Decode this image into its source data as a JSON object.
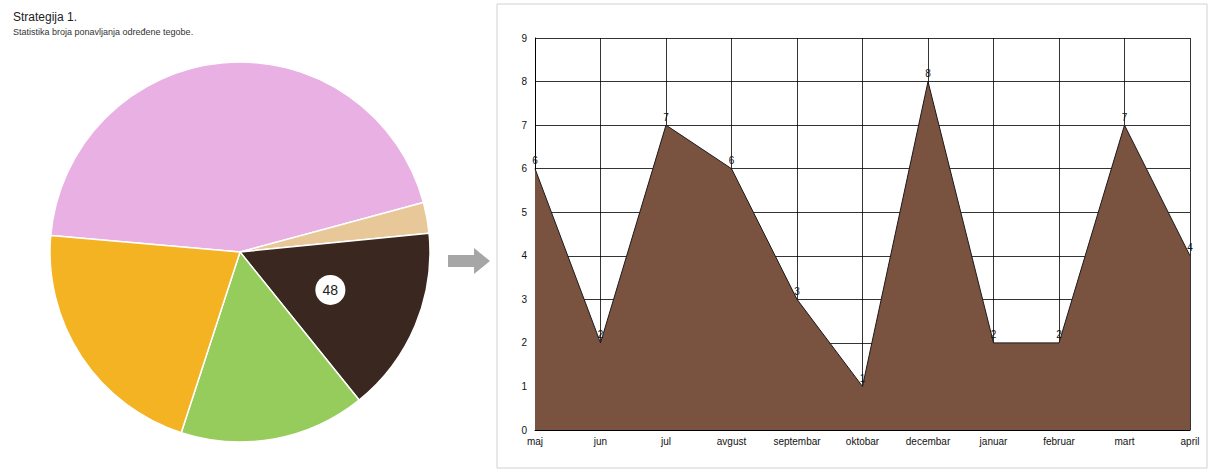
{
  "chart_data": [
    {
      "type": "pie",
      "title": "Strategija 1.",
      "subtitle": "Statistika broja ponavljanja određene tegobe.",
      "values": [
        135,
        8,
        48,
        48,
        65
      ],
      "value_labels": [
        null,
        null,
        "48",
        null,
        null
      ],
      "colors": [
        "#e9b0e4",
        "#e8c898",
        "#3a2820",
        "#96cc5c",
        "#f4b323"
      ]
    },
    {
      "type": "area",
      "categories": [
        "maj",
        "jun",
        "jul",
        "avgust",
        "septembar",
        "oktobar",
        "decembar",
        "januar",
        "februar",
        "mart",
        "april"
      ],
      "values": [
        6,
        2,
        7,
        6,
        3,
        1,
        8,
        2,
        2,
        7,
        4
      ],
      "color": "#7a5240",
      "ylim": [
        0,
        9
      ],
      "yticks": [
        0,
        1,
        2,
        3,
        4,
        5,
        6,
        7,
        8,
        9
      ],
      "grid": true,
      "data_labels": true
    }
  ]
}
